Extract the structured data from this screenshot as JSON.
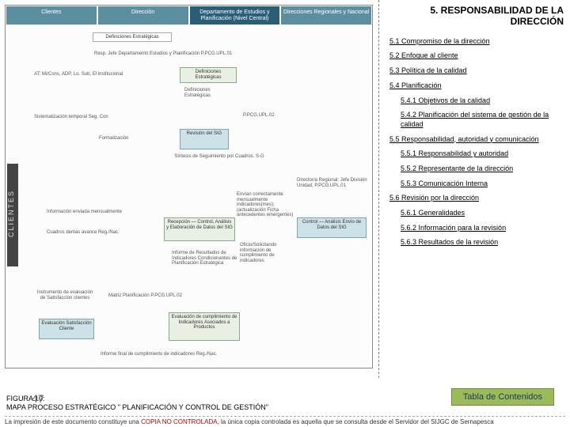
{
  "section": {
    "title": "5. RESPONSABILIDAD DE LA DIRECCIÓN",
    "toc": [
      {
        "label": "5.1 Compromiso de la dirección",
        "indent": 0
      },
      {
        "label": "5.2 Enfoque al cliente",
        "indent": 0
      },
      {
        "label": "5.3 Política de la calidad",
        "indent": 0
      },
      {
        "label": "5.4 Planificación",
        "indent": 0
      },
      {
        "label": "5.4.1 Objetivos de la calidad",
        "indent": 1
      },
      {
        "label": "5.4.2 Planificación del sistema de gestión de la calidad",
        "indent": 1
      },
      {
        "label": "5.5 Responsabilidad, autoridad y comunicación",
        "indent": 0
      },
      {
        "label": "5.5.1 Responsabilidad y autoridad",
        "indent": 1
      },
      {
        "label": "5.5.2 Representante de la dirección",
        "indent": 1
      },
      {
        "label": "5.5.3 Comunicación Interna",
        "indent": 1
      },
      {
        "label": "5.6 Revisión por la dirección",
        "indent": 0
      },
      {
        "label": "5.6.1 Generalidades",
        "indent": 1
      },
      {
        "label": "5.6.2 Información para la revisión",
        "indent": 1
      },
      {
        "label": "5.6.3 Resultados de la revisión",
        "indent": 1
      }
    ],
    "toc_button": "Tabla de Contenidos"
  },
  "figure": {
    "caption_line1": "FIGURA 10:",
    "caption_line2": "MAPA PROCESO ESTRATÉGICO \" PLANIFICACIÓN Y CONTROL DE GESTIÓN\"",
    "clientes_label": "CLIENTES",
    "header": {
      "c1": "Clientes",
      "c2": "Dirección",
      "c3": "Departamento de Estudios y Planificación (Nivel Central)",
      "c4": "Direcciones Regionales y Nacional"
    },
    "boxes": {
      "defestr_top": "Definiciones Estratégicas",
      "resp_est": "Resp. Jefe Departamento Estudios y Planificación   P.PCG.UPL.01",
      "at_min": "AT: Mi/Cons, ADP, Lo. Sub, El institucional",
      "def_est_green": "Definiciones Estratégicas",
      "def_est_sub": "Definiciones Estratégicas",
      "sist_temp": "Sistematización temporal Seg. Con",
      "pcg02": "P.PCG.UPL.02",
      "rev_sig": "Revisión del SIG",
      "form": "Formalización",
      "sintesis": "Síntesis de Seguimiento por Cuadros. S-G",
      "info_env": "Información enviada mensualmente",
      "cuadros": "Cuadros demás avance Reg./Nac.",
      "dir_reg": "Director/a Regional; Jefe División Unidad; P.PCG.UPL.01",
      "envian": "Envían correctamente mensualmente indicadores(mes); (actualización Ficha antecedentes emergentes)",
      "recepcion": "Recepción — Control, Análisis y Elaboración de Datos del SIG",
      "control_envio": "Control — Análisis Envío de Datos del SIG",
      "oficio": "Oficio/Solicitando información de cumplimiento de indicadores",
      "informe_res": "Informe de Resultados de Indicadores Condicionantes de Planificación Estratégica",
      "instrumento": "Instrumento de evaluación de Satisfacción clientes",
      "matriz": "Matriz Planificación   P.PCG.UPL.02",
      "eval_sat": "Evaluación Satisfacción Cliente",
      "eval_cum": "Evaluación de cumplimiento de Indicadores Asociados a Productos",
      "informe_final": "Informe final de cumplimiento de indicadores Reg./Nac."
    }
  },
  "page_number": "47",
  "footer": {
    "p1": "La impresión de este documento constituye una ",
    "red": "COPIA NO CONTROLADA",
    "p2": ", la única copia controlada es aquella que se consulta desde el Servidor del SIJGC de Sernapesca"
  },
  "colors": {
    "header_bg": "#5b8fa0",
    "header_dark": "#2a5d78",
    "box_green": "#e8efe3",
    "box_blue": "#cde2e8",
    "toc_btn_bg": "#9bbb59",
    "toc_btn_border": "#71893f"
  }
}
